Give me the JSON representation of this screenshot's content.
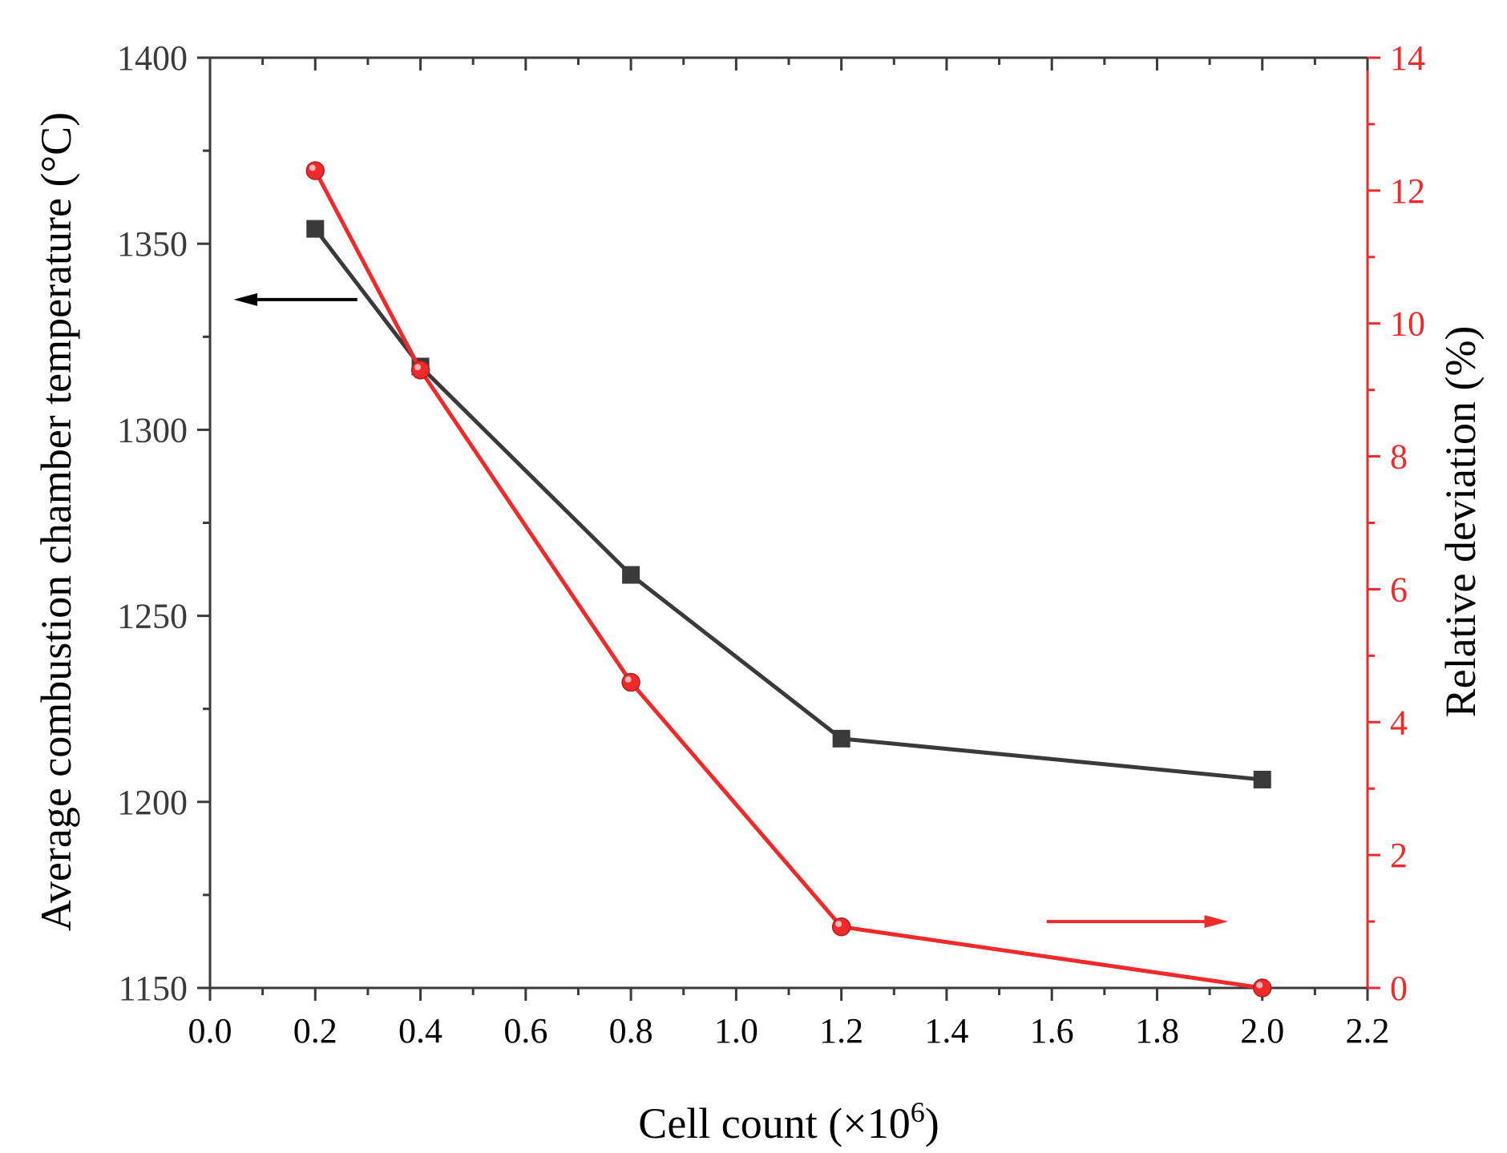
{
  "chart_data": {
    "type": "line",
    "xlabel": "Cell count (×10",
    "xlabel_sup": "6",
    "xlabel_close": ")",
    "ylabel_left": "Average combustion chamber temperature (°C)",
    "ylabel_right": "Relative deviation (%)",
    "x_ticks": [
      "0.0",
      "0.2",
      "0.4",
      "0.6",
      "0.8",
      "1.0",
      "1.2",
      "1.4",
      "1.6",
      "1.8",
      "2.0",
      "2.2"
    ],
    "y_left_ticks": [
      "1150",
      "1200",
      "1250",
      "1300",
      "1350",
      "1400"
    ],
    "y_right_ticks": [
      "0",
      "2",
      "4",
      "6",
      "8",
      "10",
      "12",
      "14"
    ],
    "xlim": [
      0,
      2.2
    ],
    "ylim_left": [
      1150,
      1400
    ],
    "ylim_right": [
      0,
      14
    ],
    "series": [
      {
        "name": "Average combustion chamber temperature",
        "axis": "left",
        "color": "#3a3a3a",
        "marker": "square",
        "x": [
          0.2,
          0.4,
          0.8,
          1.2,
          2.0
        ],
        "values": [
          1354,
          1317,
          1261,
          1217,
          1206
        ]
      },
      {
        "name": "Relative deviation",
        "axis": "right",
        "color": "#ee2a2a",
        "marker": "circle",
        "x": [
          0.2,
          0.4,
          0.8,
          1.2,
          2.0
        ],
        "values": [
          12.3,
          9.3,
          4.6,
          0.92,
          0
        ]
      }
    ],
    "annotations": [
      {
        "type": "arrow",
        "direction": "left",
        "color": "#000000",
        "points_to": "left axis"
      },
      {
        "type": "arrow",
        "direction": "right",
        "color": "#ee2a2a",
        "points_to": "right axis"
      }
    ],
    "colors": {
      "left_axis": "#3a3a3a",
      "right_axis": "#ee2a2a"
    }
  }
}
